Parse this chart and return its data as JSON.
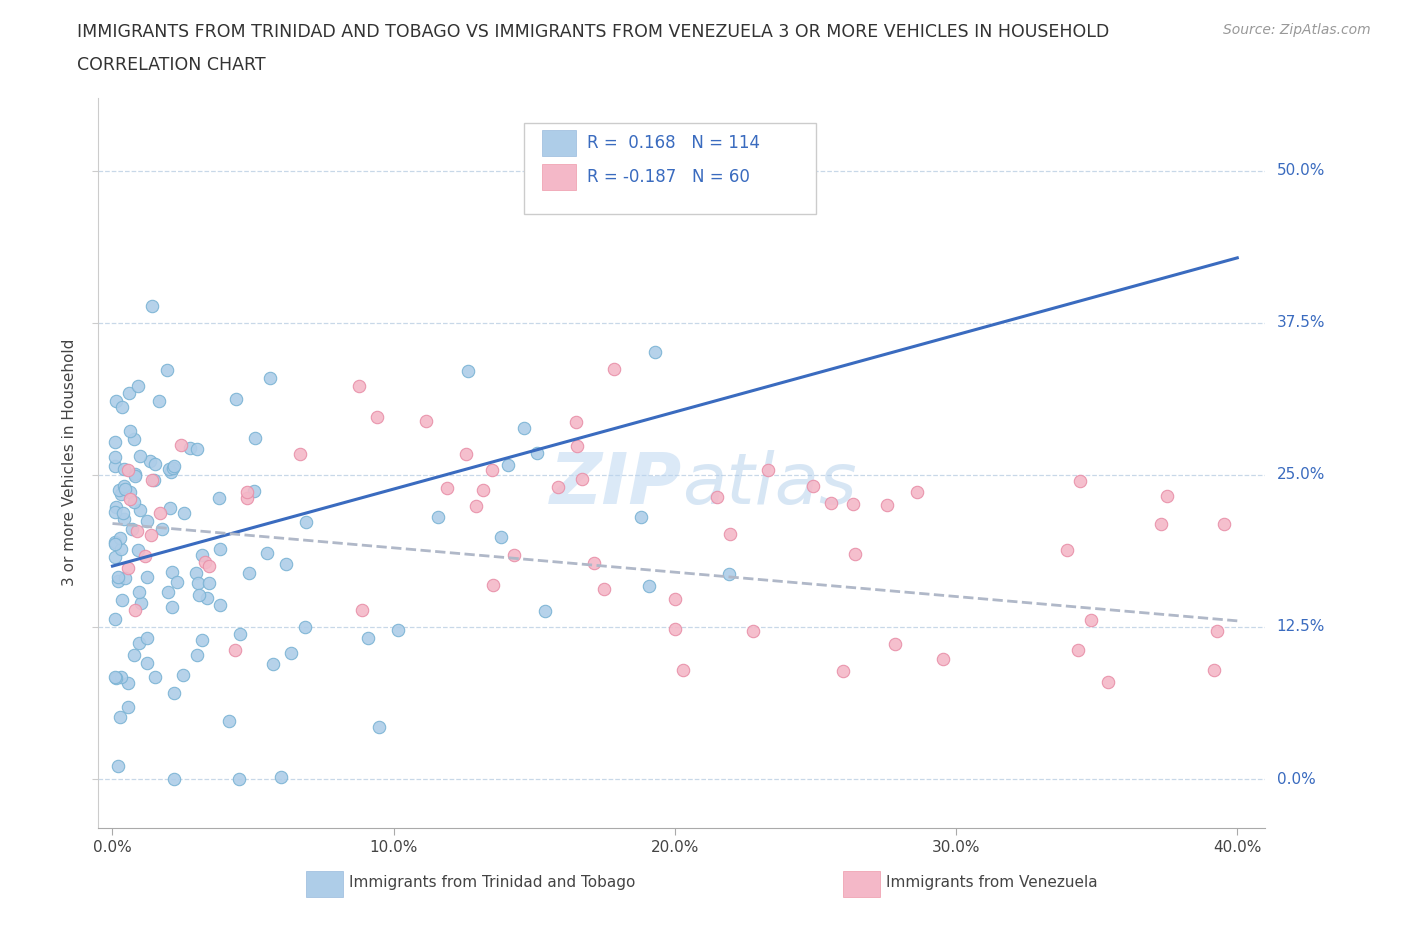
{
  "title_line1": "IMMIGRANTS FROM TRINIDAD AND TOBAGO VS IMMIGRANTS FROM VENEZUELA 3 OR MORE VEHICLES IN HOUSEHOLD",
  "title_line2": "CORRELATION CHART",
  "source": "Source: ZipAtlas.com",
  "ylabel": "3 or more Vehicles in Household",
  "xlim": [
    -0.005,
    0.41
  ],
  "ylim": [
    -0.04,
    0.56
  ],
  "yticks": [
    0.0,
    0.125,
    0.25,
    0.375,
    0.5
  ],
  "ytick_labels": [
    "0.0%",
    "12.5%",
    "25.0%",
    "37.5%",
    "50.0%"
  ],
  "xticks": [
    0.0,
    0.1,
    0.2,
    0.3,
    0.4
  ],
  "xtick_labels": [
    "0.0%",
    "10.0%",
    "20.0%",
    "30.0%",
    "40.0%"
  ],
  "color_tt_edge": "#7ab3d4",
  "color_tt_fill": "#aecde8",
  "color_vz_edge": "#e88fa8",
  "color_vz_fill": "#f4b8c8",
  "color_blue": "#3a6bbf",
  "color_pink": "#e05080",
  "color_grid": "#c8d8e8",
  "R_tt": 0.168,
  "N_tt": 114,
  "R_vz": -0.187,
  "N_vz": 60,
  "legend_label_tt": "Immigrants from Trinidad and Tobago",
  "legend_label_vz": "Immigrants from Venezuela"
}
